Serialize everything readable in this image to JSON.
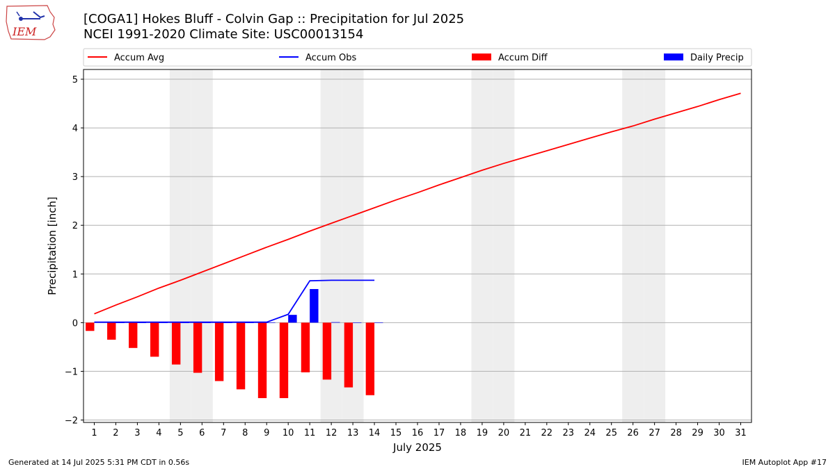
{
  "title_line1": "[COGA1] Hokes Bluff - Colvin Gap :: Precipitation for Jul 2025",
  "title_line2": "NCEI 1991-2020 Climate Site: USC00013154",
  "footer_left": "Generated at 14 Jul 2025 5:31 PM CDT in 0.56s",
  "footer_right": "IEM Autoplot App #17",
  "logo_text": "IEM",
  "colors": {
    "accum_avg": "#ff0000",
    "accum_obs": "#0000ff",
    "accum_diff": "#ff0000",
    "daily_precip": "#0000ff",
    "weekend_band": "#eeeeee",
    "grid": "#b0b0b0"
  },
  "chart_data": {
    "type": "bar+line",
    "xlabel": "July 2025",
    "ylabel": "Precipitation [inch]",
    "xlim": [
      0.5,
      31.5
    ],
    "ylim": [
      -2.05,
      5.2
    ],
    "yticks": [
      -2,
      -1,
      0,
      1,
      2,
      3,
      4,
      5
    ],
    "ytick_labels": [
      "−2",
      "−1",
      "0",
      "1",
      "2",
      "3",
      "4",
      "5"
    ],
    "days": [
      1,
      2,
      3,
      4,
      5,
      6,
      7,
      8,
      9,
      10,
      11,
      12,
      13,
      14,
      15,
      16,
      17,
      18,
      19,
      20,
      21,
      22,
      23,
      24,
      25,
      26,
      27,
      28,
      29,
      30,
      31
    ],
    "day_labels": [
      "1",
      "2",
      "3",
      "4",
      "5",
      "6",
      "7",
      "8",
      "9",
      "10",
      "11",
      "12",
      "13",
      "14",
      "15",
      "16",
      "17",
      "18",
      "19",
      "20",
      "21",
      "22",
      "23",
      "24",
      "25",
      "26",
      "27",
      "28",
      "29",
      "30",
      "31"
    ],
    "weekend_days": [
      5,
      6,
      12,
      13,
      19,
      20,
      26,
      27
    ],
    "grid": "horizontal",
    "legend_position": "top",
    "legend": [
      {
        "label": "Accum Avg",
        "kind": "line",
        "color": "#ff0000"
      },
      {
        "label": "Accum Obs",
        "kind": "line",
        "color": "#0000ff"
      },
      {
        "label": "Accum Diff",
        "kind": "bar",
        "color": "#ff0000"
      },
      {
        "label": "Daily Precip",
        "kind": "bar",
        "color": "#0000ff"
      }
    ],
    "series": [
      {
        "name": "Accum Avg",
        "kind": "line",
        "color": "#ff0000",
        "x": [
          1,
          2,
          3,
          4,
          5,
          6,
          7,
          8,
          9,
          10,
          11,
          12,
          13,
          14,
          15,
          16,
          17,
          18,
          19,
          20,
          21,
          22,
          23,
          24,
          25,
          26,
          27,
          28,
          29,
          30,
          31
        ],
        "values": [
          0.18,
          0.36,
          0.53,
          0.71,
          0.87,
          1.04,
          1.21,
          1.38,
          1.55,
          1.71,
          1.88,
          2.04,
          2.2,
          2.36,
          2.52,
          2.67,
          2.83,
          2.98,
          3.13,
          3.27,
          3.4,
          3.53,
          3.66,
          3.79,
          3.92,
          4.04,
          4.18,
          4.31,
          4.44,
          4.58,
          4.71
        ]
      },
      {
        "name": "Accum Obs",
        "kind": "line",
        "color": "#0000ff",
        "x": [
          1,
          2,
          3,
          4,
          5,
          6,
          7,
          8,
          9,
          10,
          11,
          12,
          13,
          14
        ],
        "values": [
          0.01,
          0.01,
          0.01,
          0.01,
          0.01,
          0.01,
          0.01,
          0.01,
          0.01,
          0.17,
          0.86,
          0.87,
          0.87,
          0.87
        ]
      },
      {
        "name": "Accum Diff",
        "kind": "bar",
        "color": "#ff0000",
        "x": [
          1,
          2,
          3,
          4,
          5,
          6,
          7,
          8,
          9,
          10,
          11,
          12,
          13,
          14
        ],
        "values": [
          -0.17,
          -0.35,
          -0.52,
          -0.7,
          -0.86,
          -1.03,
          -1.2,
          -1.37,
          -1.55,
          -1.55,
          -1.02,
          -1.17,
          -1.33,
          -1.49
        ]
      },
      {
        "name": "Daily Precip",
        "kind": "bar",
        "color": "#0000ff",
        "x": [
          1,
          2,
          3,
          4,
          5,
          6,
          7,
          8,
          9,
          10,
          11,
          12,
          13,
          14
        ],
        "values": [
          0.01,
          0,
          0,
          0,
          0,
          0,
          0,
          0,
          0,
          0.16,
          0.69,
          0.01,
          0,
          0
        ]
      }
    ]
  }
}
